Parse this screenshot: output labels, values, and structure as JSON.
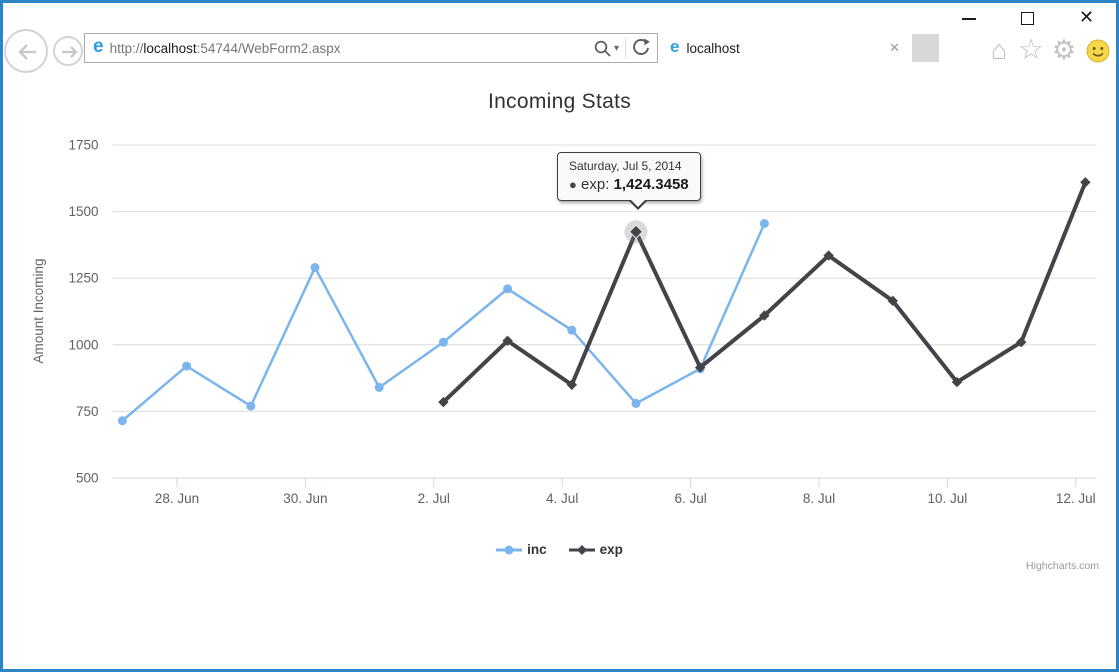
{
  "window": {
    "controls": {
      "minimize": "minimize",
      "maximize": "maximize",
      "close_glyph": "✕"
    }
  },
  "browser": {
    "url": {
      "full": "http://localhost:54744/WebForm2.aspx",
      "scheme": "http://",
      "host": "localhost",
      "path": ":54744/WebForm2.aspx"
    },
    "tab": {
      "title": "localhost"
    }
  },
  "icons": {
    "caret_down": "▾",
    "home": "⌂",
    "favorites": "☆",
    "settings": "⚙",
    "tab_close": "✕",
    "window_close": "✕",
    "bullet": "●"
  },
  "chart_data": {
    "type": "line",
    "title": "Incoming Stats",
    "x_axis": {
      "type": "datetime",
      "tick_labels": [
        "28. Jun",
        "30. Jun",
        "2. Jul",
        "4. Jul",
        "6. Jul",
        "8. Jul",
        "10. Jul",
        "12. Jul"
      ],
      "tick_day_indices": [
        1,
        3,
        5,
        7,
        9,
        11,
        13,
        15
      ],
      "range": [
        "2014-06-27",
        "2014-07-12"
      ]
    },
    "y_axis": {
      "title": "Amount Incoming",
      "ticks": [
        500,
        750,
        1000,
        1250,
        1500,
        1750
      ],
      "min": 500,
      "max": 1750
    },
    "grid": "horizontal",
    "legend_position": "bottom-center",
    "day_dates": [
      "2014-06-27",
      "2014-06-28",
      "2014-06-29",
      "2014-06-30",
      "2014-07-01",
      "2014-07-02",
      "2014-07-03",
      "2014-07-04",
      "2014-07-05",
      "2014-07-06",
      "2014-07-07",
      "2014-07-08",
      "2014-07-09",
      "2014-07-10",
      "2014-07-11",
      "2014-07-12"
    ],
    "series": [
      {
        "name": "inc",
        "color": "#7cb5ec",
        "marker": "circle",
        "line_width": 2.5,
        "start_day_index": 0,
        "values": [
          715,
          920,
          770,
          1290,
          840,
          1010,
          1210,
          1055,
          780,
          910,
          1455
        ]
      },
      {
        "name": "exp",
        "color": "#434348",
        "marker": "diamond",
        "line_width": 4,
        "start_day_index": 5,
        "values": [
          785,
          1015,
          850,
          1424.3458,
          915,
          1110,
          1335,
          1165,
          860,
          1010,
          1610
        ]
      }
    ],
    "tooltip": {
      "header": "Saturday, Jul 5, 2014",
      "series_label": "exp:",
      "value_text": "1,424.3458",
      "series": "exp",
      "value": 1424.3458,
      "day_index": 8
    },
    "credits": "Highcharts.com"
  }
}
